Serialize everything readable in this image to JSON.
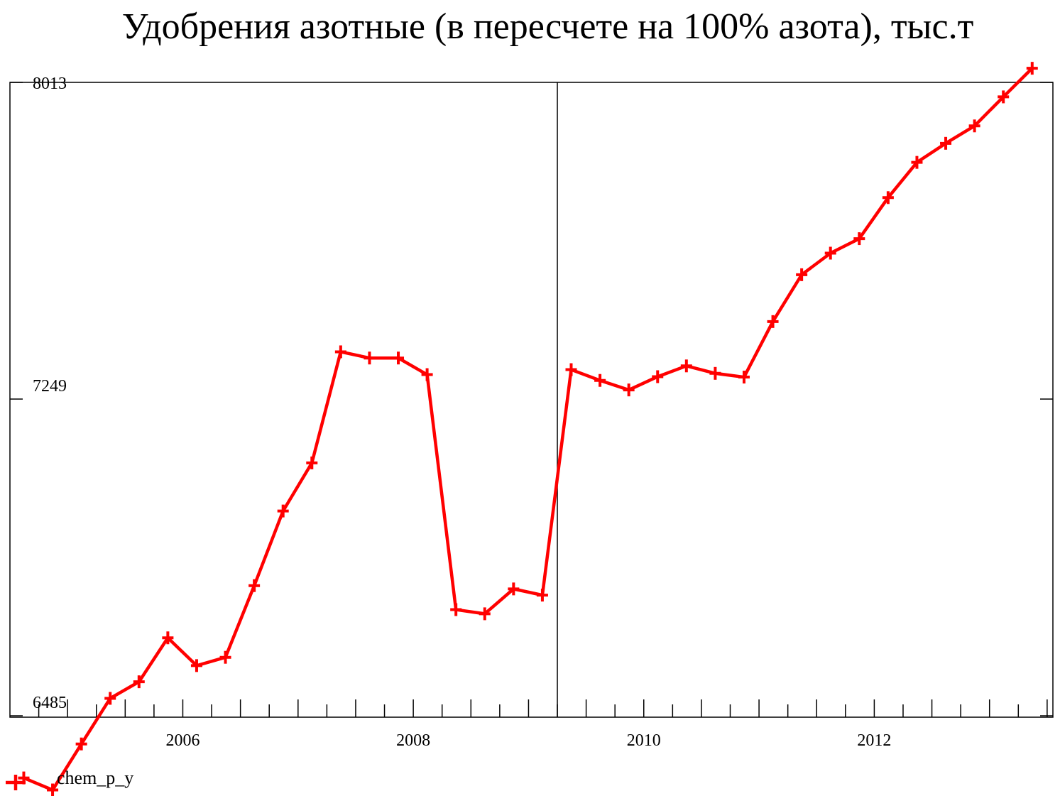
{
  "chart_data": {
    "type": "line",
    "title": "Удобрения азотные (в пересчете на 100% азота), тыс.т",
    "xlabel": "",
    "ylabel": "",
    "y_ticks": [
      "8013",
      "7249",
      "6485"
    ],
    "y_tick_values": [
      8013,
      7249,
      6485
    ],
    "x_ticks": [
      "2006",
      "2008",
      "2010",
      "2012"
    ],
    "x_tick_values": [
      2006,
      2008,
      2010,
      2012
    ],
    "xlim": [
      2004.5,
      2013.55
    ],
    "ylim": [
      6485,
      8013
    ],
    "grid": false,
    "legend_position": "bottom-left",
    "series": [
      {
        "name": "chem_p_y",
        "color": "#ff0000",
        "marker": "plus",
        "x": [
          2004.62,
          2004.87,
          2005.12,
          2005.37,
          2005.62,
          2005.87,
          2006.12,
          2006.37,
          2006.62,
          2006.87,
          2007.12,
          2007.37,
          2007.62,
          2007.87,
          2008.12,
          2008.37,
          2008.62,
          2008.87,
          2009.12,
          2009.37,
          2009.62,
          2009.87,
          2010.12,
          2010.37,
          2010.62,
          2010.87,
          2011.12,
          2011.37,
          2011.62,
          2011.87,
          2012.12,
          2012.37,
          2012.62,
          2012.87,
          2013.12,
          2013.37
        ],
        "values": [
          6335,
          6306,
          6417,
          6527,
          6567,
          6673,
          6606,
          6626,
          6799,
          6979,
          7095,
          7363,
          7348,
          7348,
          7308,
          6741,
          6731,
          6791,
          6776,
          7320,
          7294,
          7271,
          7303,
          7329,
          7311,
          7302,
          7436,
          7549,
          7601,
          7636,
          7735,
          7820,
          7866,
          7908,
          7978,
          8047
        ]
      }
    ],
    "vline_x": 2009.25
  }
}
